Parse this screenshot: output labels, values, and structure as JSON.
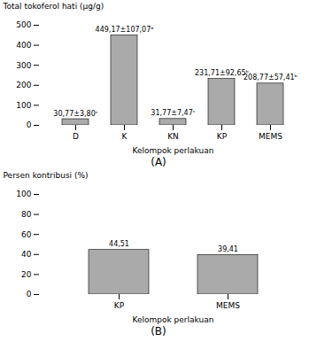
{
  "chart_data": [
    {
      "type": "bar",
      "subtitle": "(A)",
      "xlabel": "Kelompok perlakuan",
      "ylabel": "Total tokoferol hati (µg/g)",
      "categories": [
        "D",
        "K",
        "KN",
        "KP",
        "MEMS"
      ],
      "values": [
        30.77,
        449.17,
        31.77,
        231.71,
        208.77
      ],
      "value_labels": [
        "30,77±3,80ᶜ",
        "449,17±107,07ᵃ",
        "31,77±7,47ᶜ",
        "231,71±92,65ᵇ",
        "208,77±57,41ᵇ"
      ],
      "color": "#aaaaaa",
      "ylim": [
        0,
        500
      ],
      "yticks": [
        0,
        100,
        200,
        300,
        400,
        500
      ],
      "data_labels": true
    },
    {
      "type": "bar",
      "subtitle": "(B)",
      "xlabel": "Kelompok perlakuan",
      "ylabel": "Persen kontribusi (%)",
      "categories": [
        "KP",
        "MEMS"
      ],
      "values": [
        44.51,
        39.41
      ],
      "value_labels": [
        "44,51",
        "39,41"
      ],
      "color": "#aaaaaa",
      "ylim": [
        0,
        100
      ],
      "yticks": [
        0,
        20,
        40,
        60,
        80,
        100
      ],
      "data_labels": true
    }
  ]
}
